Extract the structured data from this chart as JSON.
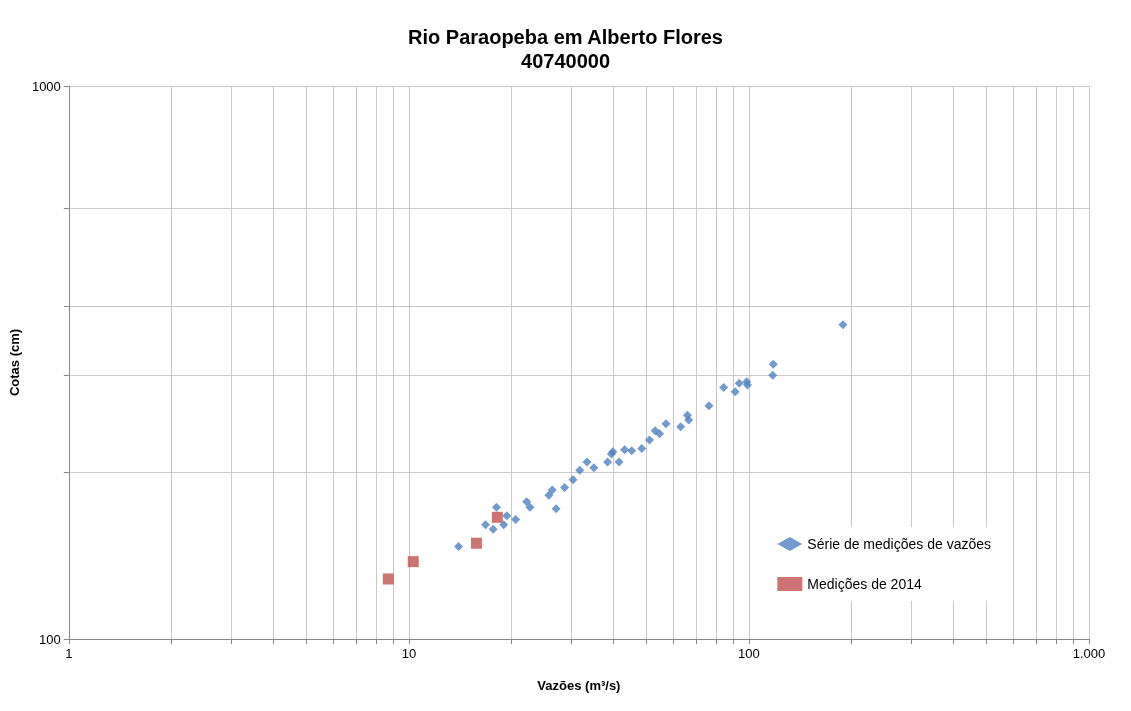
{
  "chart_data": {
    "type": "scatter",
    "title": "Rio Paraopeba em Alberto Flores",
    "subtitle": "40740000",
    "xlabel": "Vazões (m³/s)",
    "ylabel": "Cotas (cm)",
    "log": "xy",
    "grid": true,
    "legend": "bottom right",
    "xlim": [
      1,
      1000
    ],
    "ylim": [
      100,
      1000
    ],
    "xticks": [
      1,
      {
        "value": 2,
        "label": null
      },
      {
        "value": 3,
        "label": null
      },
      {
        "value": 4,
        "label": null
      },
      {
        "value": 5,
        "label": null
      },
      {
        "value": 6,
        "label": null
      },
      {
        "value": 7,
        "label": null
      },
      {
        "value": 8,
        "label": null
      },
      {
        "value": 9,
        "label": null
      },
      10,
      {
        "value": 20,
        "label": null
      },
      {
        "value": 30,
        "label": null
      },
      {
        "value": 40,
        "label": null
      },
      {
        "value": 50,
        "label": null
      },
      {
        "value": 60,
        "label": null
      },
      {
        "value": 70,
        "label": null
      },
      {
        "value": 80,
        "label": null
      },
      {
        "value": 90,
        "label": null
      },
      100,
      {
        "value": 200,
        "label": null
      },
      {
        "value": 300,
        "label": null
      },
      {
        "value": 400,
        "label": null
      },
      {
        "value": 500,
        "label": null
      },
      {
        "value": 600,
        "label": null
      },
      {
        "value": 700,
        "label": null
      },
      {
        "value": 800,
        "label": null
      },
      {
        "value": 900,
        "label": null
      },
      {
        "value": 1000,
        "label": "1.000"
      }
    ],
    "yticks": [
      100,
      {
        "value": 200,
        "label": null
      },
      {
        "value": 300,
        "label": null
      },
      {
        "value": 400,
        "label": null
      },
      {
        "value": 600,
        "label": null
      },
      1000
    ],
    "series": [
      {
        "name": "Série de medições de vazões",
        "color": "#4f81bd",
        "marker": "diamond",
        "x": [
          14.0,
          18.1,
          16.8,
          17.7,
          19.0,
          19.4,
          20.6,
          22.2,
          22.7,
          27.1,
          25.8,
          26.4,
          28.7,
          30.4,
          31.8,
          33.4,
          35.0,
          38.4,
          39.8,
          43.1,
          41.5,
          39.4,
          45.2,
          48.4,
          51.0,
          53.0,
          54.6,
          57.0,
          63.0,
          65.9,
          66.5,
          76.3,
          84.3,
          91.1,
          93.6,
          98.5,
          99.0,
          117.5,
          117.9,
          189
        ],
        "values": [
          147,
          173,
          161,
          158,
          161,
          167,
          164.5,
          177,
          173,
          172,
          182,
          186,
          188,
          194,
          202,
          209,
          204,
          209,
          218,
          220,
          209,
          216,
          219,
          221,
          229,
          238,
          235,
          245,
          242,
          254,
          249,
          264,
          285,
          280,
          290,
          292,
          288,
          300,
          314,
          370
        ]
      },
      {
        "name": "Medições de 2014",
        "color": "#c0504d",
        "marker": "square",
        "x": [
          8.7,
          10.3,
          15.8,
          18.2
        ],
        "values": [
          128.4,
          138,
          149,
          166
        ]
      }
    ]
  }
}
